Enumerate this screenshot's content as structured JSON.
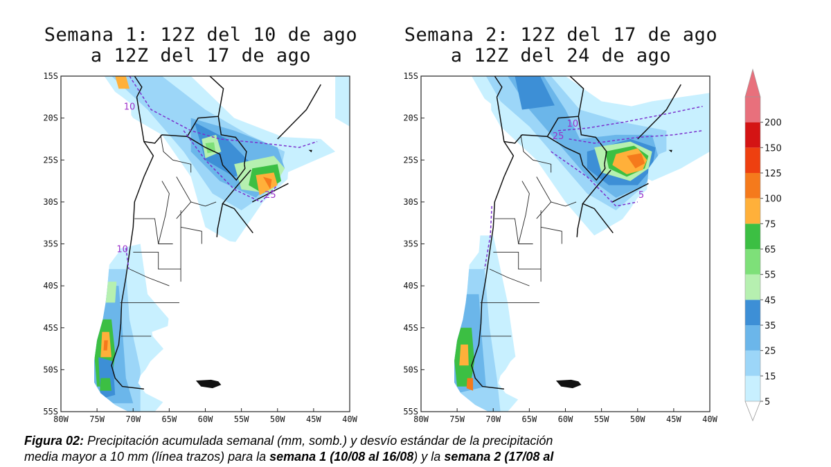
{
  "maps": [
    {
      "title": "Semana 1: 12Z del 10 de ago\na 12Z del 17 de ago",
      "contour_labels": [
        {
          "text": "10",
          "lon": -70.5,
          "lat": -19
        },
        {
          "text": "10",
          "lon": -71.5,
          "lat": -36
        },
        {
          "text": "25",
          "lon": -51,
          "lat": -29.5
        }
      ]
    },
    {
      "title": "Semana 2: 12Z del 17 de ago\na 12Z del 24 de ago",
      "contour_labels": [
        {
          "text": "10",
          "lon": -59,
          "lat": -21
        },
        {
          "text": "25",
          "lon": -61,
          "lat": -22.5
        },
        {
          "text": "5",
          "lon": -49.5,
          "lat": -29.5
        }
      ]
    }
  ],
  "axes": {
    "lat_ticks": [
      "15S",
      "20S",
      "25S",
      "30S",
      "35S",
      "40S",
      "45S",
      "50S",
      "55S"
    ],
    "lon_ticks": [
      "80W",
      "75W",
      "70W",
      "65W",
      "60W",
      "55W",
      "50W",
      "45W",
      "40W"
    ]
  },
  "colorbar": {
    "levels": [
      "5",
      "15",
      "25",
      "35",
      "45",
      "55",
      "65",
      "75",
      "100",
      "125",
      "150",
      "200"
    ],
    "colors": [
      "#c8f0ff",
      "#9cd6f8",
      "#6bb6ea",
      "#3d8fd6",
      "#b6f0b0",
      "#7ee079",
      "#3cbf43",
      "#ffb03a",
      "#f57a1c",
      "#ee4010",
      "#d41414",
      "#e8707c"
    ]
  },
  "caption": {
    "label": "Figura 02:",
    "line1": " Precipitación acumulada semanal (mm, somb.) y desvío estándar de la precipitación",
    "line2_a": "media mayor a 10 mm (línea trazos) para la ",
    "line2_b": "semana 1 (10/08 al 16/08",
    "line2_c": ") y la ",
    "line2_d": "semana 2 (17/08 al"
  }
}
